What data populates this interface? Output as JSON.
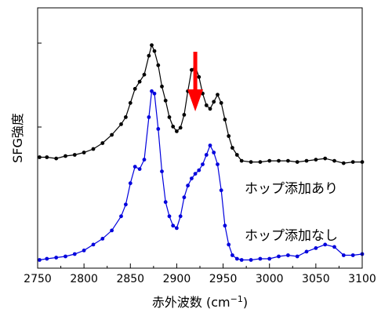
{
  "chart_data": {
    "type": "line",
    "xlabel": "赤外波数 (cm",
    "xlabel_sup": "−1",
    "xlabel_close": ")",
    "ylabel": "SFG強度",
    "xlim": [
      2750,
      3100
    ],
    "xticks": [
      "2750",
      "2800",
      "2850",
      "2900",
      "2950",
      "3000",
      "3050",
      "3100"
    ],
    "ylim": [
      0,
      10
    ],
    "yticks_visible": false,
    "grid": false,
    "annotation": {
      "type": "arrow",
      "color": "#ff0000",
      "x": 2920,
      "direction": "down"
    },
    "series": [
      {
        "name": "ホップ添加あり",
        "color": "#000000",
        "x": [
          2752,
          2760,
          2770,
          2780,
          2790,
          2800,
          2810,
          2820,
          2830,
          2840,
          2845,
          2850,
          2855,
          2860,
          2865,
          2870,
          2873,
          2876,
          2880,
          2884,
          2888,
          2892,
          2896,
          2900,
          2904,
          2908,
          2912,
          2916,
          2920,
          2924,
          2928,
          2932,
          2936,
          2940,
          2944,
          2948,
          2952,
          2956,
          2960,
          2965,
          2970,
          2980,
          2990,
          3000,
          3010,
          3020,
          3030,
          3040,
          3050,
          3060,
          3070,
          3080,
          3090,
          3100
        ],
        "y": [
          4.5,
          4.5,
          4.45,
          4.55,
          4.6,
          4.7,
          4.85,
          5.1,
          5.45,
          5.9,
          6.2,
          6.8,
          7.4,
          7.7,
          8.0,
          8.8,
          9.25,
          9.0,
          8.4,
          7.5,
          6.9,
          6.2,
          5.8,
          5.6,
          5.75,
          6.3,
          7.3,
          8.2,
          8.35,
          7.9,
          7.2,
          6.7,
          6.55,
          6.85,
          7.15,
          6.8,
          6.1,
          5.4,
          4.9,
          4.6,
          4.35,
          4.3,
          4.3,
          4.35,
          4.35,
          4.35,
          4.3,
          4.35,
          4.4,
          4.45,
          4.35,
          4.25,
          4.3,
          4.3
        ]
      },
      {
        "name": "ホップ添加なし",
        "color": "#0000dd",
        "x": [
          2752,
          2760,
          2770,
          2780,
          2790,
          2800,
          2810,
          2820,
          2830,
          2840,
          2845,
          2850,
          2855,
          2860,
          2865,
          2870,
          2873,
          2876,
          2880,
          2884,
          2888,
          2892,
          2896,
          2900,
          2904,
          2908,
          2912,
          2916,
          2920,
          2924,
          2928,
          2932,
          2936,
          2940,
          2944,
          2948,
          2952,
          2956,
          2960,
          2965,
          2970,
          2980,
          2990,
          3000,
          3010,
          3020,
          3030,
          3040,
          3050,
          3060,
          3070,
          3080,
          3090,
          3100
        ],
        "y": [
          0.15,
          0.2,
          0.25,
          0.3,
          0.4,
          0.55,
          0.8,
          1.05,
          1.4,
          2.0,
          2.5,
          3.4,
          4.1,
          4.0,
          4.4,
          6.2,
          7.3,
          7.2,
          5.7,
          3.9,
          2.6,
          2.0,
          1.6,
          1.5,
          2.0,
          2.8,
          3.3,
          3.6,
          3.8,
          3.95,
          4.2,
          4.6,
          5.0,
          4.7,
          4.2,
          3.1,
          1.6,
          0.8,
          0.35,
          0.2,
          0.15,
          0.15,
          0.2,
          0.2,
          0.3,
          0.35,
          0.3,
          0.5,
          0.65,
          0.8,
          0.7,
          0.35,
          0.35,
          0.4
        ]
      }
    ]
  }
}
